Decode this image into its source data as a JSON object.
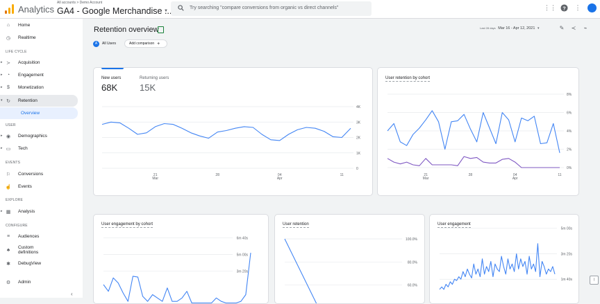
{
  "header": {
    "app_title": "Analytics",
    "account_crumb": "All accounts > Demo Account",
    "property_name": "GA4 - Google Merchandise ...",
    "search_placeholder": "Try searching \"compare conversions from organic vs direct channels\"",
    "icons": [
      "apps-grid-icon",
      "help-icon",
      "more-vert-icon",
      "account-avatar-icon"
    ],
    "brand_colors": {
      "orange": "#f9ab00",
      "dark_orange": "#e37400",
      "primary": "#1a73e8"
    }
  },
  "sidebar": {
    "items": [
      {
        "label": "Home",
        "icon": "home-icon"
      },
      {
        "label": "Realtime",
        "icon": "clock-icon"
      },
      {
        "label": "Acquisition",
        "icon": "acquisition-icon"
      },
      {
        "label": "Engagement",
        "icon": "engagement-icon"
      },
      {
        "label": "Monetization",
        "icon": "monetization-icon"
      },
      {
        "label": "Retention",
        "icon": "retention-icon"
      },
      {
        "label": "Overview",
        "icon": ""
      },
      {
        "label": "Demographics",
        "icon": "globe-icon"
      },
      {
        "label": "Tech",
        "icon": "tech-icon"
      },
      {
        "label": "Conversions",
        "icon": "flag-icon"
      },
      {
        "label": "Events",
        "icon": "touch-icon"
      },
      {
        "label": "Analysis",
        "icon": "analysis-icon"
      },
      {
        "label": "Audiences",
        "icon": "audiences-icon"
      },
      {
        "label": "Custom definitions",
        "icon": "custom-definitions-icon"
      },
      {
        "label": "DebugView",
        "icon": "bug-icon"
      },
      {
        "label": "Admin",
        "icon": "gear-icon"
      }
    ],
    "sections": [
      "LIFE CYCLE",
      "USER",
      "EVENTS",
      "EXPLORE",
      "CONFIGURE"
    ]
  },
  "page": {
    "title": "Retention overview",
    "chip_user_badge": "A",
    "chip_user_label": "All Users",
    "chip_add_label": "Add comparison",
    "date_label": "Last 28 days",
    "date_range": "Mar 16 - Apr 12, 2021"
  },
  "cards": {
    "users": {
      "new_label": "New users",
      "new_value": "68K",
      "returning_label": "Returning users",
      "returning_value": "15K"
    },
    "cohort_title": "User retention by cohort",
    "engagement_cohort_title": "User engagement by cohort",
    "user_retention_title": "User retention",
    "user_engagement_title": "User engagement"
  },
  "chart_data": [
    {
      "type": "line",
      "ylim": [
        0,
        4000
      ],
      "y_ticks": [
        "4K",
        "3K",
        "2K",
        "1K",
        "0"
      ],
      "x_ticks": [
        {
          "day": 6,
          "label": "21",
          "sub": "Mar"
        },
        {
          "day": 13,
          "label": "28",
          "sub": ""
        },
        {
          "day": 20,
          "label": "04",
          "sub": "Apr"
        },
        {
          "day": 27,
          "label": "11",
          "sub": ""
        }
      ],
      "series": [
        {
          "color": "#4285f4",
          "values": [
            2850,
            3000,
            2950,
            2600,
            2200,
            2300,
            2700,
            2900,
            2850,
            2600,
            2300,
            2100,
            1950,
            2350,
            2450,
            2600,
            2700,
            2650,
            2200,
            1850,
            1800,
            2200,
            2500,
            2650,
            2600,
            2400,
            2050,
            2000,
            2600
          ]
        }
      ]
    },
    {
      "type": "line",
      "ylim": [
        0,
        8
      ],
      "y_ticks": [
        "8%",
        "6%",
        "4%",
        "2%",
        "0%"
      ],
      "x_ticks": [
        {
          "day": 6,
          "label": "21",
          "sub": "Mar"
        },
        {
          "day": 13,
          "label": "28",
          "sub": ""
        },
        {
          "day": 20,
          "label": "04",
          "sub": "Apr"
        },
        {
          "day": 27,
          "label": "11",
          "sub": ""
        }
      ],
      "series": [
        {
          "color": "#4285f4",
          "values": [
            4.0,
            4.8,
            2.8,
            2.4,
            3.6,
            4.3,
            5.2,
            6.2,
            5.0,
            2.0,
            5.0,
            5.1,
            5.8,
            4.2,
            2.8,
            6.0,
            4.3,
            2.6,
            6.0,
            5.2,
            2.8,
            5.4,
            5.1,
            5.6,
            2.6,
            2.7,
            4.8,
            1.6
          ]
        },
        {
          "color": "#7e57c2",
          "values": [
            1.0,
            0.6,
            0.4,
            0.6,
            0.3,
            0.2,
            1.0,
            0.3,
            0.3,
            0.3,
            0.3,
            0.2,
            1.2,
            1.0,
            1.1,
            0.6,
            0.5,
            0.5,
            0.9,
            1.0,
            0.6,
            0.0,
            0.0,
            0.0,
            0.0,
            0.0,
            0.0,
            0.0
          ]
        }
      ]
    },
    {
      "type": "line",
      "ylim": [
        0,
        480
      ],
      "y_ticks": [
        "6m 40s",
        "5m 00s",
        "3m 20s"
      ],
      "y_tick_values": [
        400,
        300,
        200
      ],
      "series": [
        {
          "color": "#4285f4",
          "values": [
            120,
            80,
            160,
            130,
            70,
            20,
            170,
            165,
            50,
            20,
            60,
            40,
            20,
            100,
            20,
            20,
            40,
            80,
            10,
            10,
            10,
            10,
            10,
            40,
            20,
            10,
            10,
            10,
            20,
            60,
            310
          ]
        }
      ]
    },
    {
      "type": "line",
      "ylim": [
        0,
        100
      ],
      "y_ticks": [
        "100.0%",
        "80.0%",
        "60.0%",
        "40.0%"
      ],
      "series": [
        {
          "color": "#4285f4",
          "values": [
            100,
            4,
            4,
            4
          ]
        }
      ]
    },
    {
      "type": "line",
      "ylim": [
        0,
        340
      ],
      "y_ticks": [
        "5m 00s",
        "3m 20s",
        "1m 40s"
      ],
      "y_tick_values": [
        300,
        200,
        100
      ],
      "series": [
        {
          "color": "#4285f4",
          "values": [
            60,
            70,
            60,
            80,
            70,
            90,
            80,
            100,
            95,
            110,
            100,
            130,
            110,
            140,
            120,
            105,
            160,
            120,
            140,
            110,
            180,
            120,
            150,
            130,
            170,
            110,
            160,
            140,
            130,
            190,
            150,
            120,
            180,
            140,
            160,
            130,
            200,
            140,
            180,
            150,
            170,
            120,
            190,
            140,
            160,
            130,
            240,
            110,
            170,
            150,
            120,
            140,
            130,
            150,
            120
          ]
        }
      ]
    }
  ]
}
